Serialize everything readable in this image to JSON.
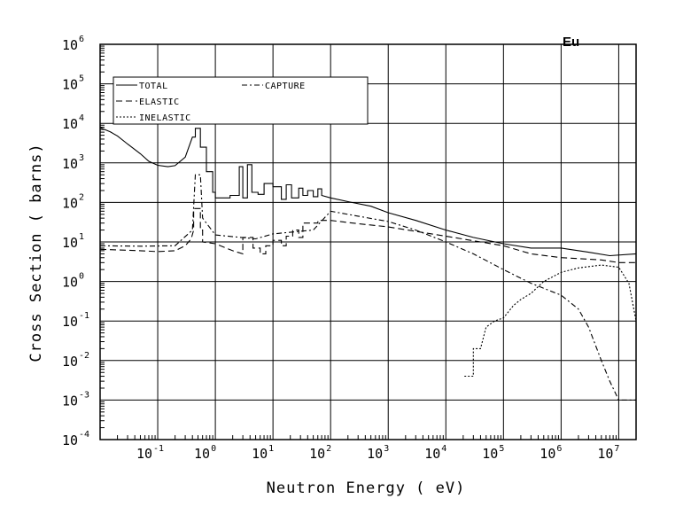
{
  "chart_data": {
    "type": "line",
    "element": "Eu",
    "xlabel": "Neutron Energy ( eV)",
    "ylabel": "Cross Section ( barns)",
    "x_scale": "log",
    "y_scale": "log",
    "xlim": [
      0.01,
      20000000
    ],
    "ylim": [
      0.0001,
      1000000
    ],
    "grid": true,
    "legend_position": "top-left",
    "x_ticks": [
      {
        "base": "10",
        "exp": "-1",
        "value": 0.1
      },
      {
        "base": "10",
        "exp": "0",
        "value": 1
      },
      {
        "base": "10",
        "exp": "1",
        "value": 10
      },
      {
        "base": "10",
        "exp": "2",
        "value": 100
      },
      {
        "base": "10",
        "exp": "3",
        "value": 1000
      },
      {
        "base": "10",
        "exp": "4",
        "value": 10000
      },
      {
        "base": "10",
        "exp": "5",
        "value": 100000
      },
      {
        "base": "10",
        "exp": "6",
        "value": 1000000
      },
      {
        "base": "10",
        "exp": "7",
        "value": 10000000
      }
    ],
    "y_ticks": [
      {
        "base": "10",
        "exp": "-4",
        "value": 0.0001
      },
      {
        "base": "10",
        "exp": "-3",
        "value": 0.001
      },
      {
        "base": "10",
        "exp": "-2",
        "value": 0.01
      },
      {
        "base": "10",
        "exp": "-1",
        "value": 0.1
      },
      {
        "base": "10",
        "exp": "0",
        "value": 1
      },
      {
        "base": "10",
        "exp": "1",
        "value": 10
      },
      {
        "base": "10",
        "exp": "2",
        "value": 100
      },
      {
        "base": "10",
        "exp": "3",
        "value": 1000
      },
      {
        "base": "10",
        "exp": "4",
        "value": 10000
      },
      {
        "base": "10",
        "exp": "5",
        "value": 100000
      },
      {
        "base": "10",
        "exp": "6",
        "value": 1000000
      }
    ],
    "series": [
      {
        "name": "TOTAL",
        "dash": "solid",
        "points": [
          [
            0.01,
            7800
          ],
          [
            0.015,
            6100
          ],
          [
            0.02,
            4800
          ],
          [
            0.03,
            3000
          ],
          [
            0.05,
            1700
          ],
          [
            0.07,
            1100
          ],
          [
            0.1,
            870
          ],
          [
            0.15,
            800
          ],
          [
            0.2,
            850
          ],
          [
            0.3,
            1400
          ],
          [
            0.4,
            4500
          ],
          [
            0.45,
            4500
          ],
          [
            0.45,
            7500
          ],
          [
            0.55,
            7500
          ],
          [
            0.55,
            2500
          ],
          [
            0.7,
            2500
          ],
          [
            0.7,
            600
          ],
          [
            0.9,
            600
          ],
          [
            0.9,
            180
          ],
          [
            1.0,
            180
          ],
          [
            1.0,
            130
          ],
          [
            1.8,
            130
          ],
          [
            1.8,
            150
          ],
          [
            2.6,
            150
          ],
          [
            2.6,
            800
          ],
          [
            3.0,
            800
          ],
          [
            3.0,
            130
          ],
          [
            3.6,
            130
          ],
          [
            3.6,
            900
          ],
          [
            4.3,
            900
          ],
          [
            4.3,
            180
          ],
          [
            5.5,
            180
          ],
          [
            5.5,
            160
          ],
          [
            7.0,
            160
          ],
          [
            7.0,
            300
          ],
          [
            10,
            300
          ],
          [
            10,
            250
          ],
          [
            14,
            250
          ],
          [
            14,
            120
          ],
          [
            17,
            120
          ],
          [
            17,
            280
          ],
          [
            21,
            280
          ],
          [
            21,
            130
          ],
          [
            28,
            130
          ],
          [
            28,
            230
          ],
          [
            33,
            230
          ],
          [
            33,
            150
          ],
          [
            40,
            150
          ],
          [
            40,
            200
          ],
          [
            50,
            200
          ],
          [
            50,
            140
          ],
          [
            60,
            140
          ],
          [
            60,
            220
          ],
          [
            70,
            220
          ],
          [
            70,
            150
          ],
          [
            100,
            130
          ],
          [
            200,
            105
          ],
          [
            500,
            80
          ],
          [
            1000,
            55
          ],
          [
            3000,
            35
          ],
          [
            10000,
            20
          ],
          [
            30000,
            13
          ],
          [
            100000,
            9
          ],
          [
            300000,
            7
          ],
          [
            1000000,
            7
          ],
          [
            3000000,
            5.5
          ],
          [
            7000000,
            4.5
          ],
          [
            20000000,
            5
          ]
        ]
      },
      {
        "name": "ELASTIC",
        "dash": "dashed",
        "points": [
          [
            0.01,
            6.5
          ],
          [
            0.05,
            6.0
          ],
          [
            0.1,
            5.7
          ],
          [
            0.2,
            6.0
          ],
          [
            0.3,
            8.0
          ],
          [
            0.38,
            12
          ],
          [
            0.42,
            20
          ],
          [
            0.42,
            70
          ],
          [
            0.55,
            70
          ],
          [
            0.55,
            20
          ],
          [
            0.6,
            20
          ],
          [
            0.6,
            10
          ],
          [
            1.0,
            9
          ],
          [
            2.0,
            6
          ],
          [
            3.0,
            5
          ],
          [
            3.0,
            13
          ],
          [
            4.5,
            13
          ],
          [
            4.5,
            7
          ],
          [
            6.0,
            7
          ],
          [
            6.0,
            5
          ],
          [
            7.5,
            5
          ],
          [
            7.5,
            8
          ],
          [
            10,
            8
          ],
          [
            10,
            11
          ],
          [
            14,
            11
          ],
          [
            14,
            8
          ],
          [
            17,
            8
          ],
          [
            17,
            14
          ],
          [
            22,
            14
          ],
          [
            22,
            20
          ],
          [
            28,
            20
          ],
          [
            28,
            13
          ],
          [
            33,
            13
          ],
          [
            33,
            30
          ],
          [
            60,
            30
          ],
          [
            60,
            35
          ],
          [
            100,
            35
          ],
          [
            300,
            29
          ],
          [
            1000,
            24
          ],
          [
            10000,
            14
          ],
          [
            100000,
            8
          ],
          [
            300000,
            5
          ],
          [
            1000000,
            4
          ],
          [
            5000000,
            3.5
          ],
          [
            10000000,
            3
          ],
          [
            20000000,
            3
          ]
        ]
      },
      {
        "name": "CAPTURE",
        "dash": "dashdot",
        "points": [
          [
            0.01,
            8
          ],
          [
            0.05,
            7.8
          ],
          [
            0.2,
            8
          ],
          [
            0.4,
            20
          ],
          [
            0.45,
            500
          ],
          [
            0.55,
            500
          ],
          [
            0.6,
            40
          ],
          [
            1.0,
            15
          ],
          [
            5,
            12
          ],
          [
            10,
            16
          ],
          [
            50,
            20
          ],
          [
            100,
            60
          ],
          [
            300,
            45
          ],
          [
            1000,
            33
          ],
          [
            3000,
            20
          ],
          [
            10000,
            10
          ],
          [
            30000,
            5
          ],
          [
            100000,
            2
          ],
          [
            300000,
            0.9
          ],
          [
            1000000,
            0.45
          ],
          [
            2000000,
            0.2
          ],
          [
            3000000,
            0.07
          ],
          [
            5000000,
            0.01
          ],
          [
            7000000,
            0.003
          ],
          [
            10000000,
            0.001
          ],
          [
            20000000,
            0.001
          ]
        ]
      },
      {
        "name": "INELASTIC",
        "dash": "dotted",
        "points": [
          [
            21000,
            0.004
          ],
          [
            30000,
            0.004
          ],
          [
            30000,
            0.02
          ],
          [
            40000,
            0.02
          ],
          [
            50000,
            0.07
          ],
          [
            70000,
            0.1
          ],
          [
            100000,
            0.12
          ],
          [
            150000,
            0.25
          ],
          [
            200000,
            0.35
          ],
          [
            300000,
            0.5
          ],
          [
            500000,
            1.0
          ],
          [
            1000000,
            1.7
          ],
          [
            2000000,
            2.2
          ],
          [
            5000000,
            2.6
          ],
          [
            10000000,
            2.3
          ],
          [
            15000000,
            0.9
          ],
          [
            20000000,
            0.1
          ]
        ]
      }
    ]
  }
}
